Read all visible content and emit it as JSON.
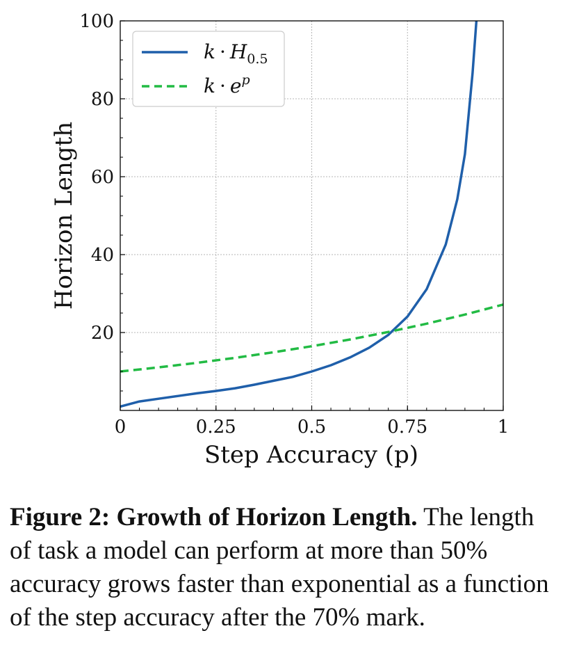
{
  "chart_data": {
    "type": "line",
    "xlabel": "Step Accuracy (p)",
    "ylabel": "Horizon Length",
    "xlim": [
      0,
      1
    ],
    "ylim": [
      0,
      100
    ],
    "x_ticks": [
      "0",
      "0.25",
      "0.5",
      "0.75",
      "1"
    ],
    "y_ticks": [
      "20",
      "40",
      "60",
      "80",
      "100"
    ],
    "grid": true,
    "legend_position": "top-left",
    "series": [
      {
        "name": "k·H_0.5",
        "color": "#1f5faa",
        "style": "solid",
        "x": [
          0.0,
          0.05,
          0.1,
          0.15,
          0.2,
          0.25,
          0.3,
          0.35,
          0.4,
          0.45,
          0.5,
          0.55,
          0.6,
          0.65,
          0.7,
          0.75,
          0.8,
          0.85,
          0.88,
          0.9,
          0.92,
          0.93
        ],
        "y": [
          1.0,
          2.3,
          3.0,
          3.7,
          4.4,
          5.0,
          5.7,
          6.6,
          7.6,
          8.6,
          10.0,
          11.6,
          13.6,
          16.1,
          19.4,
          24.1,
          31.1,
          42.6,
          54.2,
          65.8,
          86.6,
          100.0
        ]
      },
      {
        "name": "k·e^p",
        "color": "#22bb44",
        "style": "dashed",
        "x": [
          0.0,
          0.1,
          0.2,
          0.3,
          0.4,
          0.5,
          0.6,
          0.7,
          0.8,
          0.9,
          1.0
        ],
        "y": [
          10.0,
          11.05,
          12.21,
          13.5,
          14.92,
          16.49,
          18.22,
          20.14,
          22.26,
          24.6,
          27.18
        ]
      }
    ]
  },
  "legend": {
    "series1_var": "k",
    "series1_dot": "·",
    "series1_main": "H",
    "series1_sub": "0.5",
    "series2_var": "k",
    "series2_dot": "·",
    "series2_main": "e",
    "series2_sup": "p"
  },
  "caption": {
    "bold": "Figure 2: Growth of Horizon Length.",
    "text": " The length of task a model can perform at more than 50% accuracy grows faster than exponential as a function of the step accuracy after the 70% mark."
  }
}
